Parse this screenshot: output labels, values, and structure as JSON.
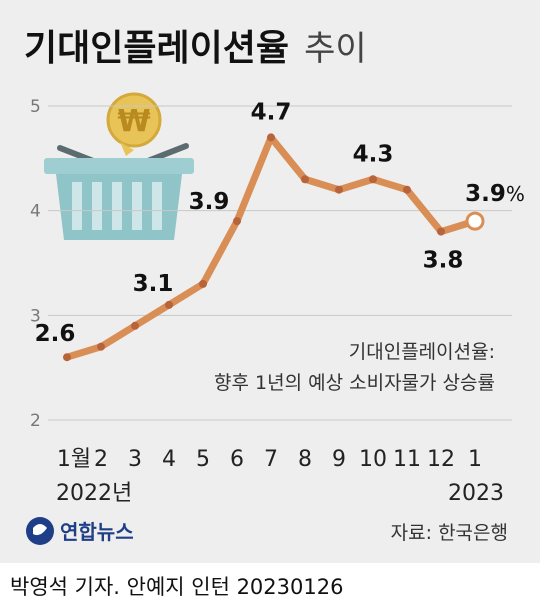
{
  "header": {
    "title": "기대인플레이션율",
    "subtitle": "추이"
  },
  "chart_data": {
    "type": "line",
    "x": [
      "2022-01",
      "2022-02",
      "2022-03",
      "2022-04",
      "2022-05",
      "2022-06",
      "2022-07",
      "2022-08",
      "2022-09",
      "2022-10",
      "2022-11",
      "2022-12",
      "2023-01"
    ],
    "tick_labels": [
      "1월",
      "2",
      "3",
      "4",
      "5",
      "6",
      "7",
      "8",
      "9",
      "10",
      "11",
      "12",
      "1"
    ],
    "year_labels": {
      "start": "2022년",
      "end": "2023"
    },
    "values": [
      2.6,
      2.7,
      2.9,
      3.1,
      3.3,
      3.9,
      4.7,
      4.3,
      4.2,
      4.3,
      4.2,
      3.8,
      3.9
    ],
    "data_labels": [
      {
        "index": 0,
        "text": "2.6"
      },
      {
        "index": 3,
        "text": "3.1"
      },
      {
        "index": 5,
        "text": "3.9"
      },
      {
        "index": 6,
        "text": "4.7"
      },
      {
        "index": 9,
        "text": "4.3"
      },
      {
        "index": 11,
        "text": "3.8"
      },
      {
        "index": 12,
        "text": "3.9",
        "suffix": "%"
      }
    ],
    "ylim": [
      2,
      5
    ],
    "yticks": [
      "2",
      "3",
      "4",
      "5"
    ],
    "grid": true,
    "line_color": "#d98e55",
    "legend": "none"
  },
  "note": {
    "line1": "기대인플레이션율:",
    "line2": "향후 1년의 예상 소비자물가 상승률"
  },
  "logo": {
    "text": "연합뉴스"
  },
  "source": "자료: 한국은행",
  "credit": "박영석 기자. 안예지 인턴  20230126",
  "colors": {
    "line": "#d98e55",
    "dot": "#b8643a",
    "background": "#eeeeee",
    "grid": "#c8c8c8",
    "logo": "#1e3f87",
    "basket": "#8fc4c9"
  },
  "icons": {
    "illustration": "shopping-basket-icon",
    "coin": "won-coin-icon"
  }
}
